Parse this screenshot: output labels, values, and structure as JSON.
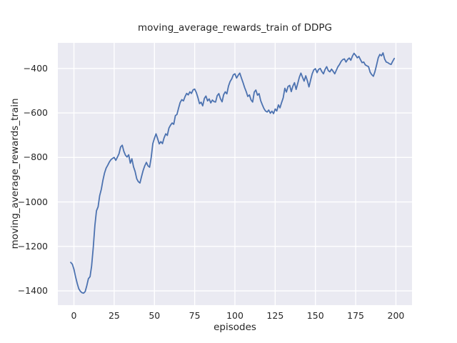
{
  "chart_data": {
    "type": "line",
    "title": "moving_average_rewards_train of DDPG",
    "xlabel": "episodes",
    "ylabel": "moving_average_rewards_train",
    "xlim": [
      -10,
      210
    ],
    "ylim": [
      -1464,
      -285
    ],
    "grid": true,
    "legend": false,
    "x_ticks": [
      {
        "label": "0",
        "value": 0
      },
      {
        "label": "25",
        "value": 25
      },
      {
        "label": "50",
        "value": 50
      },
      {
        "label": "75",
        "value": 75
      },
      {
        "label": "100",
        "value": 100
      },
      {
        "label": "125",
        "value": 125
      },
      {
        "label": "150",
        "value": 150
      },
      {
        "label": "175",
        "value": 175
      },
      {
        "label": "200",
        "value": 200
      }
    ],
    "y_ticks": [
      {
        "label": "−400",
        "value": -400
      },
      {
        "label": "−600",
        "value": -600
      },
      {
        "label": "−800",
        "value": -800
      },
      {
        "label": "−1000",
        "value": -1000
      },
      {
        "label": "−1200",
        "value": -1200
      },
      {
        "label": "−1400",
        "value": -1400
      }
    ],
    "colors": {
      "line": "#4C72B0",
      "plot_background": "#EAEAF2",
      "grid": "#FFFFFF",
      "figure_background": "#FFFFFF",
      "text": "#262626"
    },
    "series": [
      {
        "name": "moving_average_rewards_train",
        "x_start": -2,
        "x_step": 1,
        "values": [
          -1272,
          -1280,
          -1302,
          -1336,
          -1366,
          -1390,
          -1402,
          -1408,
          -1410,
          -1403,
          -1376,
          -1345,
          -1336,
          -1288,
          -1205,
          -1105,
          -1040,
          -1022,
          -972,
          -943,
          -903,
          -870,
          -848,
          -835,
          -821,
          -810,
          -804,
          -800,
          -813,
          -799,
          -783,
          -753,
          -745,
          -772,
          -790,
          -798,
          -788,
          -826,
          -806,
          -842,
          -863,
          -896,
          -909,
          -915,
          -886,
          -858,
          -838,
          -822,
          -838,
          -844,
          -799,
          -738,
          -714,
          -694,
          -716,
          -739,
          -729,
          -738,
          -712,
          -694,
          -701,
          -668,
          -655,
          -645,
          -651,
          -612,
          -607,
          -578,
          -553,
          -540,
          -546,
          -527,
          -512,
          -519,
          -505,
          -512,
          -496,
          -493,
          -508,
          -530,
          -558,
          -552,
          -568,
          -535,
          -524,
          -546,
          -537,
          -555,
          -542,
          -549,
          -551,
          -522,
          -513,
          -536,
          -550,
          -518,
          -505,
          -514,
          -479,
          -459,
          -447,
          -429,
          -424,
          -443,
          -431,
          -421,
          -442,
          -463,
          -485,
          -504,
          -526,
          -519,
          -541,
          -551,
          -506,
          -497,
          -520,
          -513,
          -545,
          -563,
          -580,
          -591,
          -596,
          -587,
          -601,
          -592,
          -603,
          -582,
          -591,
          -564,
          -577,
          -553,
          -532,
          -489,
          -506,
          -481,
          -476,
          -504,
          -479,
          -464,
          -494,
          -468,
          -440,
          -421,
          -440,
          -457,
          -433,
          -456,
          -483,
          -452,
          -424,
          -406,
          -401,
          -419,
          -404,
          -400,
          -414,
          -424,
          -404,
          -392,
          -410,
          -415,
          -403,
          -413,
          -424,
          -408,
          -392,
          -382,
          -368,
          -360,
          -357,
          -371,
          -360,
          -353,
          -363,
          -344,
          -332,
          -341,
          -352,
          -346,
          -361,
          -374,
          -371,
          -384,
          -388,
          -392,
          -417,
          -428,
          -435,
          -414,
          -384,
          -352,
          -337,
          -343,
          -330,
          -358,
          -371,
          -374,
          -379,
          -382,
          -368,
          -355
        ]
      }
    ]
  }
}
